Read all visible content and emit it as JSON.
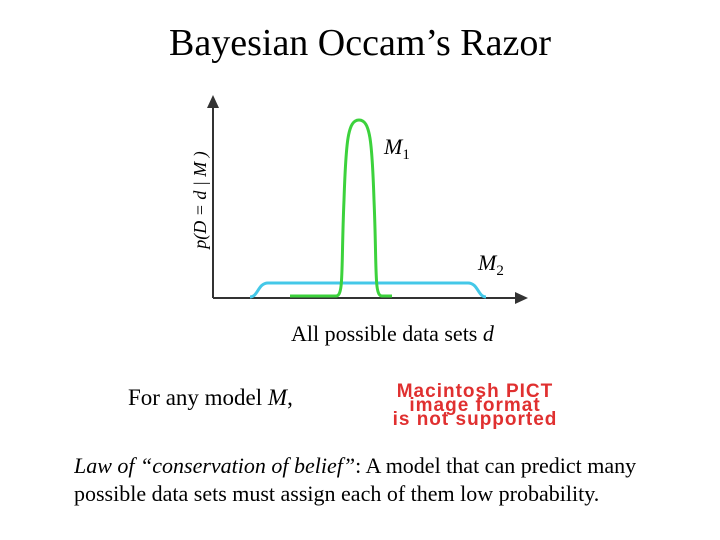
{
  "header": {
    "title": "Bayesian Occam’s Razor"
  },
  "figure": {
    "y_label": {
      "prefix": "p(D = d | M )"
    },
    "curves": [
      {
        "name": "M",
        "subscript": "1"
      },
      {
        "name": "M",
        "subscript": "2"
      }
    ],
    "x_label": {
      "text": "All possible data sets",
      "var": "d"
    }
  },
  "statement": {
    "text": "For any model",
    "var": "M",
    "punct": ","
  },
  "image_placeholder": {
    "lines": [
      "Macintosh PICT",
      "image format",
      "is not supported"
    ]
  },
  "law": {
    "italic": "Law of “conservation of belief”",
    "rest": ": A model that can predict many possible data sets must assign each of them low probability."
  }
}
